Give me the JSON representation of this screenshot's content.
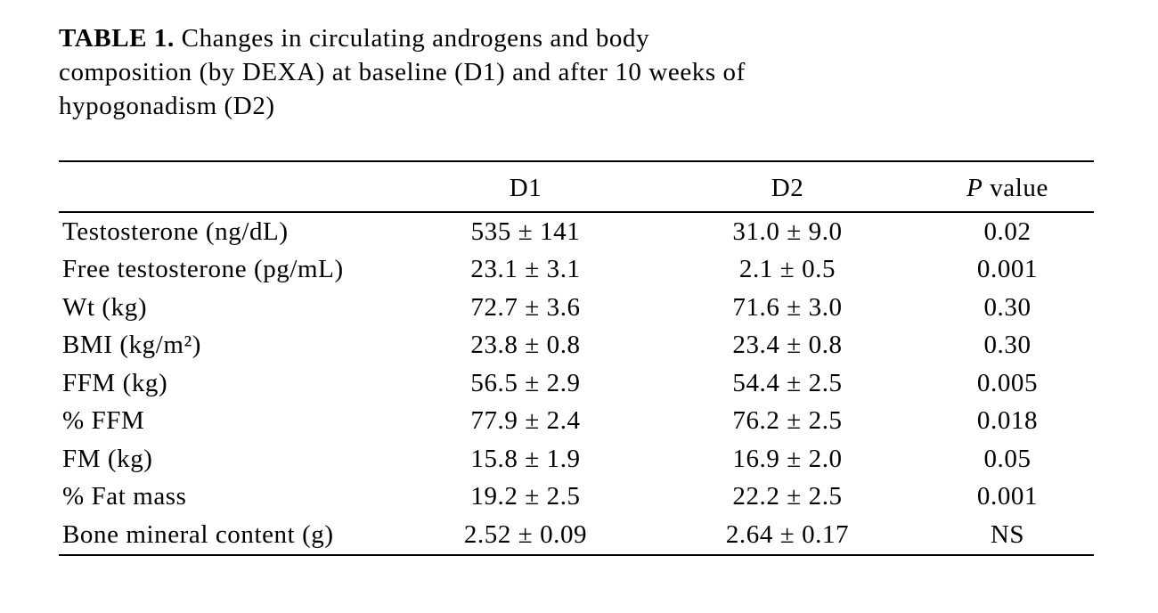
{
  "caption": {
    "label": "TABLE 1.",
    "lines": [
      " Changes in circulating androgens and body",
      "composition (by DEXA) at baseline (D1) and after 10 weeks of",
      "hypogonadism (D2)"
    ]
  },
  "table": {
    "headers": {
      "d1": "D1",
      "d2": "D2",
      "p_italic": "P",
      "p_rest": " value"
    },
    "rows": [
      {
        "label": "Testosterone (ng/dL)",
        "d1": "535 ± 141",
        "d2": "31.0 ± 9.0",
        "p": "0.02"
      },
      {
        "label": "Free testosterone (pg/mL)",
        "d1": "23.1 ± 3.1",
        "d2": "2.1 ± 0.5",
        "p": "0.001"
      },
      {
        "label": "Wt (kg)",
        "d1": "72.7 ± 3.6",
        "d2": "71.6 ± 3.0",
        "p": "0.30"
      },
      {
        "label": "BMI (kg/m²)",
        "d1": "23.8 ± 0.8",
        "d2": "23.4 ± 0.8",
        "p": "0.30"
      },
      {
        "label": "FFM (kg)",
        "d1": "56.5 ± 2.9",
        "d2": "54.4 ± 2.5",
        "p": "0.005"
      },
      {
        "label": "% FFM",
        "d1": "77.9 ± 2.4",
        "d2": "76.2 ± 2.5",
        "p": "0.018"
      },
      {
        "label": "FM (kg)",
        "d1": "15.8 ± 1.9",
        "d2": "16.9 ± 2.0",
        "p": "0.05"
      },
      {
        "label": "% Fat mass",
        "d1": "19.2 ± 2.5",
        "d2": "22.2 ± 2.5",
        "p": "0.001"
      },
      {
        "label": "Bone mineral content (g)",
        "d1": "2.52 ± 0.09",
        "d2": "2.64 ± 0.17",
        "p": "NS"
      }
    ]
  }
}
